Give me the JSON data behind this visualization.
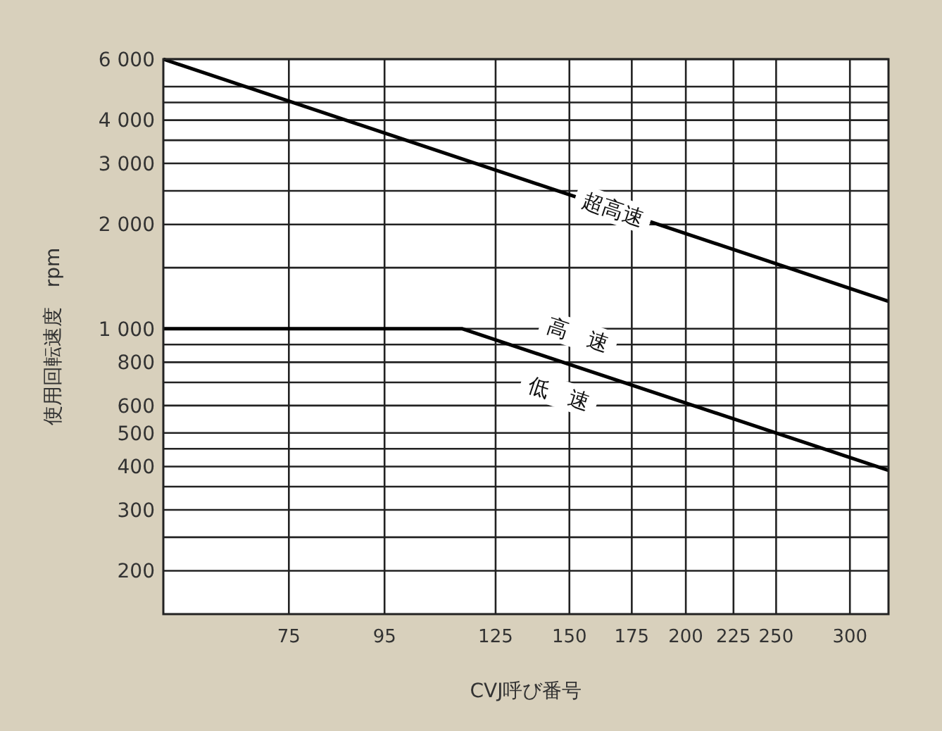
{
  "chart_data": {
    "type": "line",
    "xlabel": "CVJ呼び番号",
    "ylabel": "使用回転速度　rpm",
    "log": "xy",
    "grid": true,
    "marker": "none",
    "line_style": "solid",
    "xlim": [
      55,
      330
    ],
    "xticks": [
      75,
      95,
      125,
      150,
      175,
      200,
      225,
      250,
      300
    ],
    "ylim": [
      150,
      6000
    ],
    "yticks": [
      {
        "value": 6000,
        "label": "6 000"
      },
      {
        "value": 5000,
        "label": null
      },
      {
        "value": 4500,
        "label": null
      },
      {
        "value": 4000,
        "label": "4 000"
      },
      {
        "value": 3500,
        "label": null
      },
      {
        "value": 3000,
        "label": "3 000"
      },
      {
        "value": 2500,
        "label": null
      },
      {
        "value": 2000,
        "label": "2 000"
      },
      {
        "value": 1500,
        "label": null
      },
      {
        "value": 1000,
        "label": "1 000"
      },
      {
        "value": 900,
        "label": null
      },
      800,
      {
        "value": 700,
        "label": null
      },
      600,
      500,
      {
        "value": 450,
        "label": null
      },
      400,
      {
        "value": 350,
        "label": null
      },
      300,
      {
        "value": 250,
        "label": null
      },
      200
    ],
    "series": [
      {
        "name": "超高速",
        "color": "#000000",
        "x": [
          55,
          330
        ],
        "values": [
          6000,
          1200
        ]
      },
      {
        "color": "#000000",
        "x": [
          55,
          115,
          330
        ],
        "values": [
          1000,
          1000,
          390
        ]
      }
    ],
    "annotations": [
      "高　速",
      "低　速"
    ]
  }
}
